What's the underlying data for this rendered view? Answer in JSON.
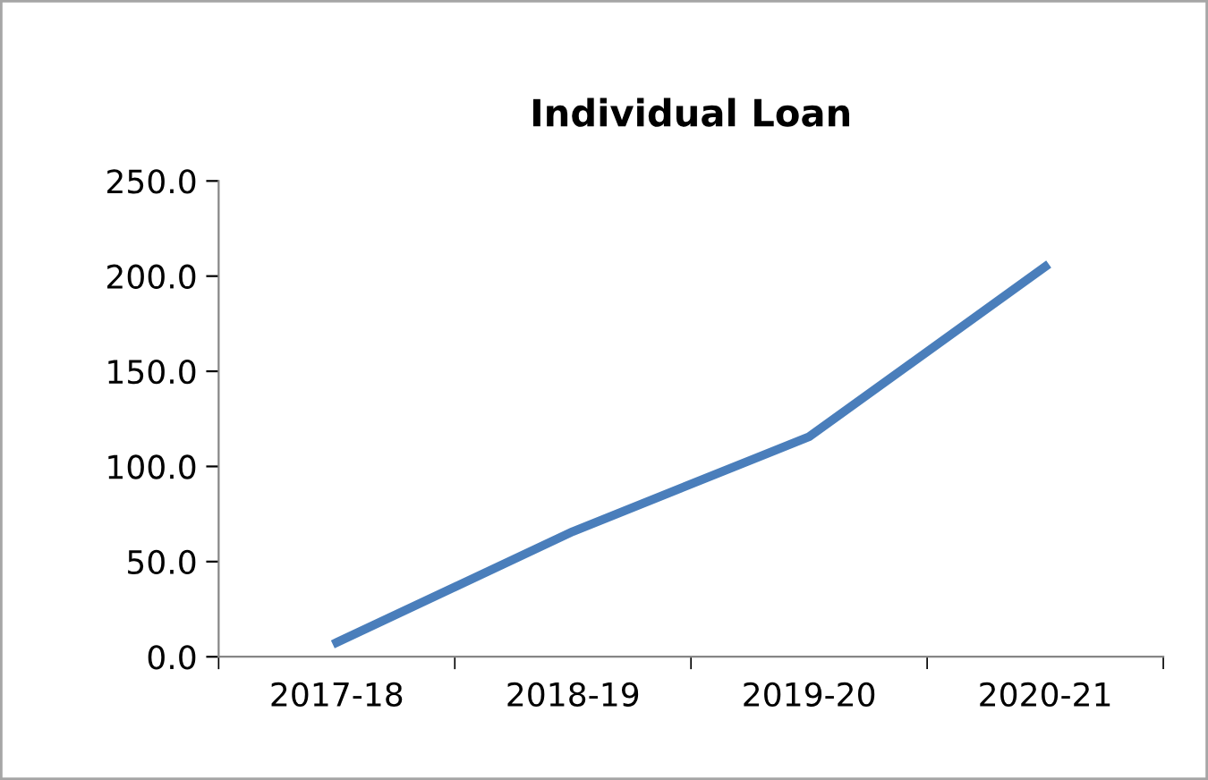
{
  "chart_data": {
    "type": "line",
    "title": "Individual Loan",
    "categories": [
      "2017-18",
      "2018-19",
      "2019-20",
      "2020-21"
    ],
    "series": [
      {
        "color": "#4a7ebb",
        "values": [
          7.5,
          65.8,
          115.6,
          205.0
        ]
      }
    ],
    "ylim": [
      0,
      250
    ],
    "yticks": [
      {
        "value": 0,
        "label": "0.0"
      },
      {
        "value": 50,
        "label": "50.0"
      },
      {
        "value": 100,
        "label": "100.0"
      },
      {
        "value": 150,
        "label": "150.0"
      },
      {
        "value": 200,
        "label": "200.0"
      },
      {
        "value": 250,
        "label": "250.0"
      }
    ],
    "grid": false,
    "legend": false,
    "marker": "none",
    "line_style": "solid"
  }
}
